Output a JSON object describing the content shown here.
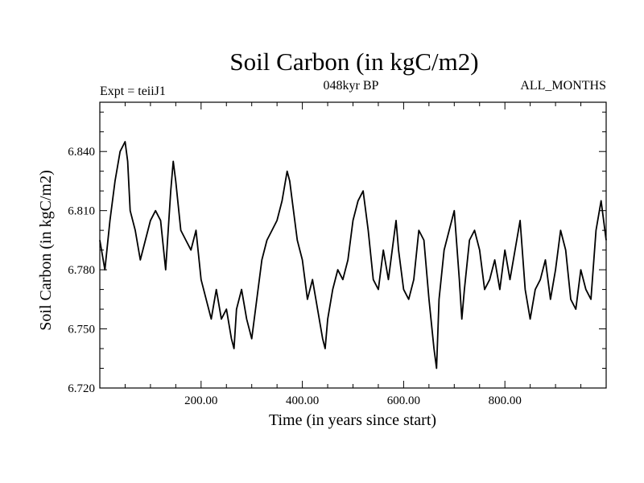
{
  "chart_data": {
    "type": "line",
    "title": "Soil Carbon (in kgC/m2)",
    "subtitle_left": "Expt = teiiJ1",
    "subtitle_center": "048kyr BP",
    "subtitle_right": "ALL_MONTHS",
    "xlabel": "Time (in years since start)",
    "ylabel": "Soil Carbon (in kgC/m2)",
    "xlim": [
      0,
      1000
    ],
    "ylim": [
      6.72,
      6.865
    ],
    "xticks": [
      200,
      400,
      600,
      800
    ],
    "xtick_labels": [
      "200.00",
      "400.00",
      "600.00",
      "800.00"
    ],
    "yticks": [
      6.72,
      6.75,
      6.78,
      6.81,
      6.84
    ],
    "ytick_labels": [
      "6.720",
      "6.750",
      "6.780",
      "6.810",
      "6.840"
    ],
    "grid": false,
    "series": [
      {
        "color": "#000000",
        "x": [
          0,
          10,
          20,
          30,
          40,
          50,
          55,
          60,
          70,
          80,
          90,
          100,
          110,
          120,
          130,
          140,
          145,
          150,
          160,
          170,
          180,
          190,
          200,
          210,
          220,
          230,
          240,
          250,
          260,
          265,
          270,
          280,
          290,
          300,
          310,
          320,
          330,
          340,
          350,
          360,
          370,
          375,
          380,
          390,
          400,
          410,
          420,
          430,
          440,
          445,
          450,
          460,
          470,
          480,
          490,
          500,
          510,
          520,
          530,
          540,
          550,
          560,
          570,
          580,
          585,
          590,
          600,
          610,
          620,
          630,
          640,
          650,
          660,
          665,
          670,
          680,
          690,
          700,
          710,
          715,
          720,
          730,
          740,
          750,
          760,
          770,
          780,
          790,
          800,
          810,
          820,
          830,
          840,
          850,
          860,
          870,
          880,
          890,
          900,
          910,
          920,
          930,
          940,
          950,
          960,
          970,
          980,
          990,
          1000
        ],
        "values": [
          6.795,
          6.78,
          6.805,
          6.825,
          6.84,
          6.845,
          6.835,
          6.81,
          6.8,
          6.785,
          6.795,
          6.805,
          6.81,
          6.805,
          6.78,
          6.82,
          6.835,
          6.825,
          6.8,
          6.795,
          6.79,
          6.8,
          6.775,
          6.765,
          6.755,
          6.77,
          6.755,
          6.76,
          6.745,
          6.74,
          6.76,
          6.77,
          6.755,
          6.745,
          6.765,
          6.785,
          6.795,
          6.8,
          6.805,
          6.815,
          6.83,
          6.825,
          6.815,
          6.795,
          6.785,
          6.765,
          6.775,
          6.76,
          6.745,
          6.74,
          6.755,
          6.77,
          6.78,
          6.775,
          6.785,
          6.805,
          6.815,
          6.82,
          6.8,
          6.775,
          6.77,
          6.79,
          6.775,
          6.795,
          6.805,
          6.79,
          6.77,
          6.765,
          6.775,
          6.8,
          6.795,
          6.765,
          6.74,
          6.73,
          6.765,
          6.79,
          6.8,
          6.81,
          6.775,
          6.755,
          6.77,
          6.795,
          6.8,
          6.79,
          6.77,
          6.775,
          6.785,
          6.77,
          6.79,
          6.775,
          6.79,
          6.805,
          6.77,
          6.755,
          6.77,
          6.775,
          6.785,
          6.765,
          6.78,
          6.8,
          6.79,
          6.765,
          6.76,
          6.78,
          6.77,
          6.765,
          6.8,
          6.815,
          6.795
        ]
      }
    ]
  }
}
